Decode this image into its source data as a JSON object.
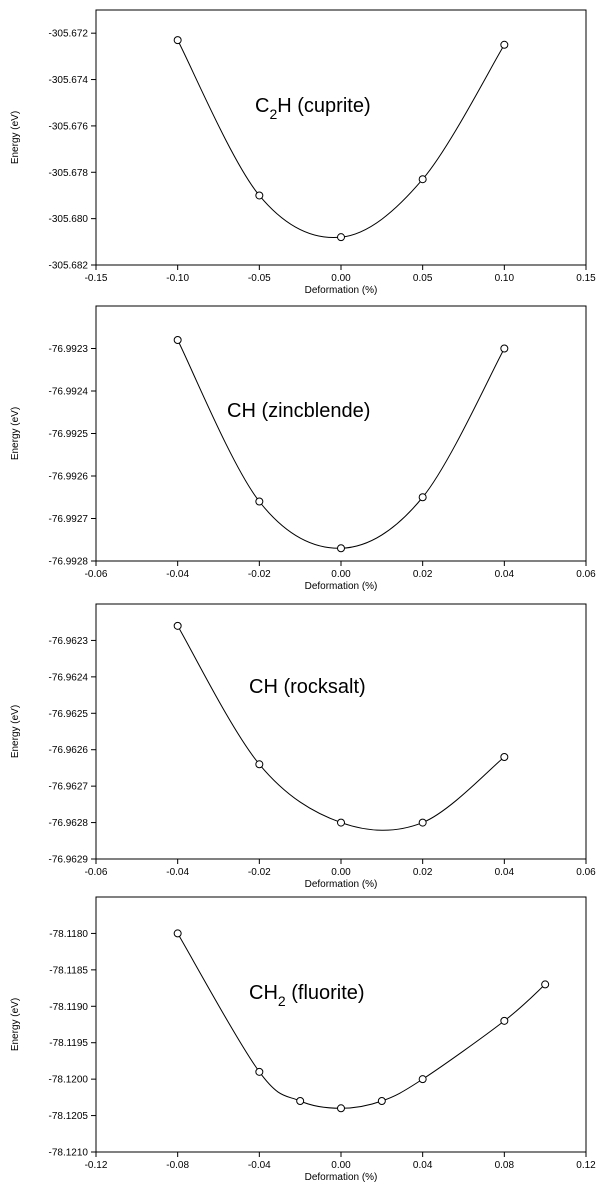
{
  "chart_data": [
    {
      "type": "scatter",
      "title": "C2H (cuprite)",
      "title_main": "C",
      "title_sub": "2",
      "title_rest": "H (cuprite)",
      "xlabel": "Deformation (%)",
      "ylabel": "Energy (eV)",
      "xlim": [
        -0.15,
        0.15
      ],
      "ylim": [
        -305.682,
        -305.671
      ],
      "xticks": [
        -0.15,
        -0.1,
        -0.05,
        0.0,
        0.05,
        0.1,
        0.15
      ],
      "xtick_labels": [
        "-0.15",
        "-0.10",
        "-0.05",
        "0.00",
        "0.05",
        "0.10",
        "0.15"
      ],
      "yticks": [
        -305.682,
        -305.68,
        -305.678,
        -305.676,
        -305.674,
        -305.672
      ],
      "ytick_labels": [
        "-305.682",
        "-305.680",
        "-305.678",
        "-305.676",
        "-305.674",
        "-305.672"
      ],
      "x": [
        -0.1,
        -0.05,
        0.0,
        0.05,
        0.1
      ],
      "y": [
        -305.6723,
        -305.679,
        -305.6808,
        -305.6783,
        -305.6725
      ],
      "curve": "smooth"
    },
    {
      "type": "scatter",
      "title": "CH (zincblende)",
      "title_main": "CH (zincblende)",
      "title_sub": "",
      "title_rest": "",
      "xlabel": "Deformation (%)",
      "ylabel": "Energy (eV)",
      "xlim": [
        -0.06,
        0.06
      ],
      "ylim": [
        -76.9928,
        -76.9922
      ],
      "xticks": [
        -0.06,
        -0.04,
        -0.02,
        0.0,
        0.02,
        0.04,
        0.06
      ],
      "xtick_labels": [
        "-0.06",
        "-0.04",
        "-0.02",
        "0.00",
        "0.02",
        "0.04",
        "0.06"
      ],
      "yticks": [
        -76.9928,
        -76.9927,
        -76.9926,
        -76.9925,
        -76.9924,
        -76.9923
      ],
      "ytick_labels": [
        "-76.9928",
        "-76.9927",
        "-76.9926",
        "-76.9925",
        "-76.9924",
        "-76.9923"
      ],
      "x": [
        -0.04,
        -0.02,
        0.0,
        0.02,
        0.04
      ],
      "y": [
        -76.99228,
        -76.99266,
        -76.99277,
        -76.99265,
        -76.9923
      ],
      "curve": "smooth"
    },
    {
      "type": "scatter",
      "title": "CH (rocksalt)",
      "title_main": "CH (rocksalt)",
      "title_sub": "",
      "title_rest": "",
      "xlabel": "Deformation (%)",
      "ylabel": "Energy (eV)",
      "xlim": [
        -0.06,
        0.06
      ],
      "ylim": [
        -76.9629,
        -76.9622
      ],
      "xticks": [
        -0.06,
        -0.04,
        -0.02,
        0.0,
        0.02,
        0.04,
        0.06
      ],
      "xtick_labels": [
        "-0.06",
        "-0.04",
        "-0.02",
        "0.00",
        "0.02",
        "0.04",
        "0.06"
      ],
      "yticks": [
        -76.9629,
        -76.9628,
        -76.9627,
        -76.9626,
        -76.9625,
        -76.9624,
        -76.9623
      ],
      "ytick_labels": [
        "-76.9629",
        "-76.9628",
        "-76.9627",
        "-76.9626",
        "-76.9625",
        "-76.9624",
        "-76.9623"
      ],
      "x": [
        -0.04,
        -0.02,
        0.0,
        0.02,
        0.04
      ],
      "y": [
        -76.96226,
        -76.96264,
        -76.9628,
        -76.9628,
        -76.96262
      ],
      "curve": "smooth"
    },
    {
      "type": "line",
      "title": "CH2 (fluorite)",
      "title_main": "CH",
      "title_sub": "2",
      "title_rest": " (fluorite)",
      "xlabel": "Deformation (%)",
      "ylabel": "Energy (eV)",
      "xlim": [
        -0.12,
        0.12
      ],
      "ylim": [
        -78.121,
        -78.1175
      ],
      "xticks": [
        -0.12,
        -0.08,
        -0.04,
        0.0,
        0.04,
        0.08,
        0.12
      ],
      "xtick_labels": [
        "-0.12",
        "-0.08",
        "-0.04",
        "0.00",
        "0.04",
        "0.08",
        "0.12"
      ],
      "yticks": [
        -78.121,
        -78.1205,
        -78.12,
        -78.1195,
        -78.119,
        -78.1185,
        -78.118
      ],
      "ytick_labels": [
        "-78.1210",
        "-78.1205",
        "-78.1200",
        "-78.1195",
        "-78.1190",
        "-78.1185",
        "-78.1180"
      ],
      "x": [
        -0.08,
        -0.04,
        -0.02,
        0.0,
        0.02,
        0.04,
        0.08,
        0.1
      ],
      "y": [
        -78.118,
        -78.1199,
        -78.1203,
        -78.1204,
        -78.1203,
        -78.12,
        -78.1192,
        -78.1187
      ],
      "curve": "smooth"
    }
  ]
}
